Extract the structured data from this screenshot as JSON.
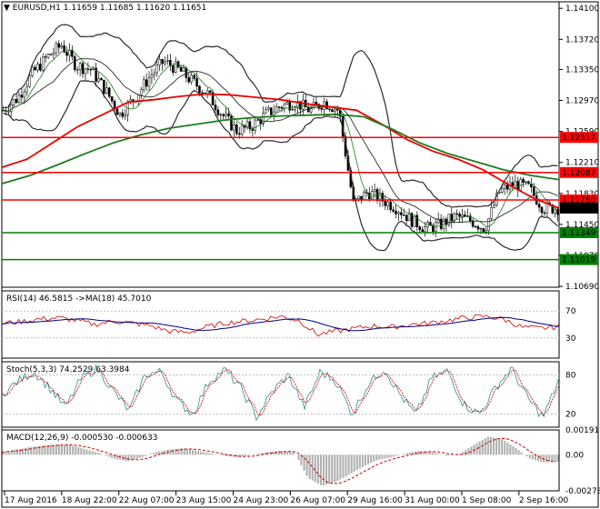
{
  "header": {
    "symbol": "EURUSD,H1",
    "ohlc": "1.11659 1.11685 1.11620 1.11651"
  },
  "colors": {
    "candle_outline": "#000000",
    "price_up_fill": "#ffffff",
    "ma_red": "#e80000",
    "ma_green": "#1f7a1f",
    "bollinger": "#2b2b2b",
    "hline_red": "#ff0000",
    "hline_green": "#008000",
    "rsi_line": "#cc0000",
    "rsi_ma": "#000080",
    "stoch_main": "#2e8b8b",
    "stoch_signal": "#cc0000",
    "macd_hist": "#b0b0b0",
    "macd_signal": "#cc0000",
    "current_price_box": "#000000"
  },
  "chart_data": [
    {
      "type": "candlestick",
      "panel": "price",
      "title": "EURUSD,H1",
      "ylim": [
        1.1068,
        1.1418
      ],
      "y_ticks": [
        "1.14100",
        "1.13720",
        "1.13350",
        "1.12970",
        "1.12590",
        "1.12210",
        "1.11830",
        "1.11450",
        "1.11070",
        "1.10690"
      ],
      "x_ticks": [
        "17 Aug 2016",
        "18 Aug 22:00",
        "22 Aug 07:00",
        "23 Aug 15:00",
        "24 Aug 23:00",
        "26 Aug 07:00",
        "29 Aug 16:00",
        "31 Aug 00:00",
        "1 Sep 08:00",
        "2 Sep 16:00"
      ],
      "close_path": [
        1.1285,
        1.13,
        1.133,
        1.135,
        1.1365,
        1.134,
        1.1335,
        1.131,
        1.128,
        1.13,
        1.1325,
        1.1345,
        1.1335,
        1.132,
        1.1305,
        1.128,
        1.126,
        1.1265,
        1.128,
        1.129,
        1.1295,
        1.1285,
        1.1295,
        1.1285,
        1.117,
        1.1185,
        1.1175,
        1.1165,
        1.115,
        1.114,
        1.1145,
        1.1155,
        1.115,
        1.114,
        1.1185,
        1.1195,
        1.119,
        1.1165,
        1.1165
      ],
      "horizontal_levels": [
        {
          "value": 1.12517,
          "label": "1.12517",
          "color": "red"
        },
        {
          "value": 1.12087,
          "label": "1.12087",
          "color": "red"
        },
        {
          "value": 1.1175,
          "label": "1.11750",
          "color": "red"
        },
        {
          "value": 1.11349,
          "label": "1.11349",
          "color": "green"
        },
        {
          "value": 1.11019,
          "label": "1.11019",
          "color": "green"
        }
      ],
      "current_price": {
        "value": 1.11651,
        "label": "1.11651"
      },
      "ma_red_path": [
        1.1215,
        1.1225,
        1.1245,
        1.1265,
        1.128,
        1.1295,
        1.1298,
        1.1302,
        1.1305,
        1.1304,
        1.1301,
        1.1298,
        1.1293,
        1.1289,
        1.1285,
        1.1268,
        1.1249,
        1.1235,
        1.1225,
        1.1212,
        1.1194,
        1.1177,
        1.1165
      ],
      "ma_green_path": [
        1.1195,
        1.1205,
        1.1218,
        1.1232,
        1.1245,
        1.1255,
        1.1263,
        1.1268,
        1.1273,
        1.1276,
        1.1278,
        1.1279,
        1.128,
        1.1277,
        1.1262,
        1.1245,
        1.1232,
        1.1222,
        1.1212,
        1.1205,
        1.12
      ]
    },
    {
      "type": "line",
      "panel": "rsi",
      "title": "RSI(14) 46.5815 ->MA(18) 45.7010",
      "y_ticks": [
        "70",
        "30"
      ],
      "ylim": [
        0,
        100
      ],
      "series": [
        {
          "values": [
            52,
            54,
            58,
            60,
            56,
            50,
            55,
            52,
            48,
            40,
            38,
            46,
            52,
            55,
            58,
            62,
            56,
            35,
            40,
            44,
            48,
            46,
            50,
            52,
            56,
            60,
            62,
            58,
            46,
            44,
            47
          ]
        }
      ]
    },
    {
      "type": "line",
      "panel": "stochastic",
      "title": "Stoch(5,3,3) 74.2529 63.3984",
      "y_ticks": [
        "80",
        "20"
      ],
      "ylim": [
        0,
        100
      ],
      "series": [
        {
          "values": [
            50,
            70,
            85,
            60,
            30,
            75,
            90,
            55,
            25,
            80,
            85,
            40,
            20,
            70,
            88,
            60,
            15,
            55,
            80,
            30,
            85,
            70,
            20,
            65,
            90,
            50,
            18,
            75,
            86,
            35,
            20,
            60,
            90,
            45,
            15,
            74
          ]
        }
      ]
    },
    {
      "type": "bar",
      "panel": "macd",
      "title": "MACD(12,26,9) -0.000530 -0.000633",
      "y_ticks": [
        "0.001912",
        "0.00",
        "-0.002785"
      ],
      "ylim": [
        -0.002785,
        0.001912
      ],
      "series": [
        {
          "values": [
            0.0002,
            0.0004,
            0.0006,
            0.0007,
            0.0008,
            0.0007,
            0.0004,
            0.0001,
            -0.0003,
            -0.0005,
            -0.0002,
            0.0002,
            0.0004,
            0.0005,
            0.0003,
            0.0001,
            -0.0001,
            -0.0002,
            0.0,
            0.0002,
            0.0003,
            0.0002,
            -0.0018,
            -0.0024,
            -0.0021,
            -0.0015,
            -0.0009,
            -0.0004,
            -0.0002,
            0.0001,
            0.0003,
            0.0002,
            -0.0001,
            0.0001,
            0.0008,
            0.0014,
            0.0012,
            0.0005,
            -0.0003,
            -0.0006,
            -0.00053
          ]
        }
      ]
    }
  ]
}
